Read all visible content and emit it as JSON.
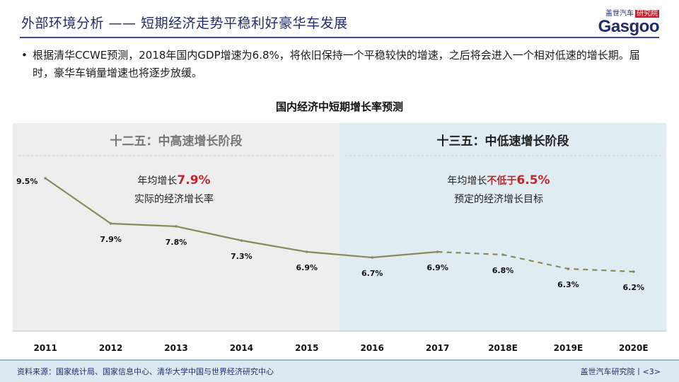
{
  "header": {
    "title": "外部环境分析 —— 短期经济走势平稳利好豪华车发展",
    "logo_top": "盖世汽车",
    "logo_badge": "研究院",
    "logo_word": "Gasgoo"
  },
  "bullet": {
    "symbol": "•",
    "text": "根据清华CCWE预测，2018年国内GDP增速为6.8%，将依旧保持一个平稳较快的增速，之后将会进入一个相对低速的增长期。届时，豪华车销量增速也将逐步放缓。"
  },
  "chart_data": {
    "type": "line",
    "title": "国内经济中短期增长率预测",
    "categories": [
      "2011",
      "2012",
      "2013",
      "2014",
      "2015",
      "2016",
      "2017",
      "2018E",
      "2019E",
      "2020E"
    ],
    "values": [
      9.5,
      7.9,
      7.8,
      7.3,
      6.9,
      6.7,
      6.9,
      6.8,
      6.3,
      6.2
    ],
    "data_labels": [
      "9.5%",
      "7.9%",
      "7.8%",
      "7.3%",
      "6.9%",
      "6.7%",
      "6.9%",
      "6.8%",
      "6.3%",
      "6.2%"
    ],
    "actual_through": "2017",
    "forecast_style": "dashed",
    "line_color": "#8a8a5c",
    "ylim": [
      5.0,
      10.0
    ],
    "phases": [
      {
        "title": "十二五：中高速增长阶段",
        "span": [
          "2011",
          "2015"
        ],
        "note_prefix": "年均增长",
        "note_value": "7.9%",
        "note_line2": "实际的经济增长率",
        "background": "#eeeeee"
      },
      {
        "title": "十三五：中低速增长阶段",
        "span": [
          "2016",
          "2020E"
        ],
        "note_prefix": "年均增长",
        "note_emph": "不低于",
        "note_value": "6.5%",
        "note_line2": "预定的经济增长目标",
        "background": "#dfedf2"
      }
    ],
    "accent_color": "#c0272d"
  },
  "footer": {
    "source": "资料来源：国家统计局、国家信息中心、清华大学中国与世界经济研究中心",
    "institute": "盖世汽车研究院丨<3>"
  }
}
